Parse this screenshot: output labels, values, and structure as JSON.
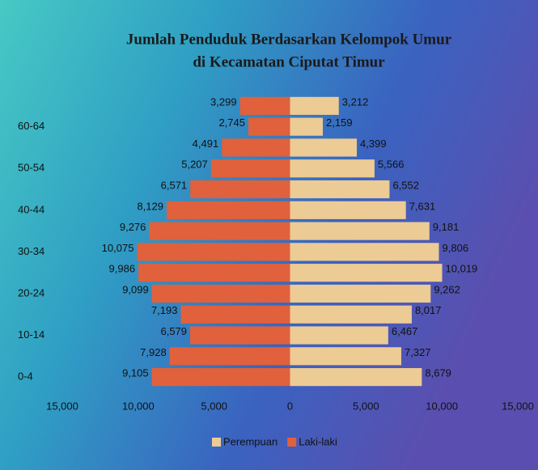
{
  "chart_data": {
    "type": "pyramid",
    "title": [
      "Jumlah Penduduk Berdasarkan  Kelompok Umur",
      "di Kecamatan Ciputat Timur"
    ],
    "categories": [
      "0-4",
      null,
      "10-14",
      null,
      "20-24",
      null,
      "30-34",
      null,
      "40-44",
      null,
      "50-54",
      null,
      "60-64",
      null
    ],
    "series": [
      {
        "name": "Perempuan",
        "color": "#eccb94",
        "side": "right",
        "values": [
          8679,
          7327,
          6467,
          8017,
          9262,
          10019,
          9806,
          9181,
          7631,
          6552,
          5566,
          4399,
          2159,
          3212
        ],
        "value_labels": [
          "8,679",
          "7,327",
          "6,467",
          "8,017",
          "9,262",
          "10,019",
          "9,806",
          "9,181",
          "7,631",
          "6,552",
          "5,566",
          "4,399",
          "2,159",
          "3,212"
        ]
      },
      {
        "name": "Laki-laki",
        "color": "#e0613b",
        "side": "left",
        "values": [
          9105,
          7928,
          6579,
          7193,
          9099,
          9986,
          10075,
          9276,
          8129,
          6571,
          5207,
          4491,
          2745,
          3299
        ],
        "value_labels": [
          "9,105",
          "7,928",
          "6,579",
          "7,193",
          "9,099",
          "9,986",
          "10,075",
          "9,276",
          "8,129",
          "6,571",
          "5,207",
          "4,491",
          "2,745",
          "3,299"
        ]
      }
    ],
    "xlim": [
      -15000,
      15000
    ],
    "xticks": [
      {
        "value": -15000,
        "label": "15,000"
      },
      {
        "value": -10000,
        "label": "10,000"
      },
      {
        "value": -5000,
        "label": "5,000"
      },
      0,
      {
        "value": 5000,
        "label": "5,000"
      },
      {
        "value": 10000,
        "label": "10,000"
      },
      {
        "value": 15000,
        "label": "15,000"
      }
    ],
    "legend": "bottom"
  }
}
